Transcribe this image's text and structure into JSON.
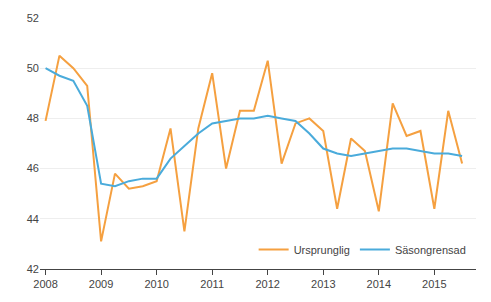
{
  "chart_data": {
    "type": "line",
    "x": [
      2008.0,
      2008.25,
      2008.5,
      2008.75,
      2009.0,
      2009.25,
      2009.5,
      2009.75,
      2010.0,
      2010.25,
      2010.5,
      2010.75,
      2011.0,
      2011.25,
      2011.5,
      2011.75,
      2012.0,
      2012.25,
      2012.5,
      2012.75,
      2013.0,
      2013.25,
      2013.5,
      2013.75,
      2014.0,
      2014.25,
      2014.5,
      2014.75,
      2015.0,
      2015.25,
      2015.5
    ],
    "series": [
      {
        "name": "Ursprunglig",
        "color": "#F5A040",
        "values": [
          47.9,
          50.5,
          50.0,
          49.3,
          43.1,
          45.8,
          45.2,
          45.3,
          45.5,
          47.6,
          43.5,
          47.6,
          49.8,
          46.0,
          48.3,
          48.3,
          50.3,
          46.2,
          47.8,
          48.0,
          47.5,
          44.4,
          47.2,
          46.7,
          44.3,
          48.6,
          47.3,
          47.5,
          44.4,
          48.3,
          46.2
        ]
      },
      {
        "name": "Säsongrensad",
        "color": "#4AABDB",
        "values": [
          50.0,
          49.7,
          49.5,
          48.5,
          45.4,
          45.3,
          45.5,
          45.6,
          45.6,
          46.4,
          46.9,
          47.4,
          47.8,
          47.9,
          48.0,
          48.0,
          48.1,
          48.0,
          47.9,
          47.4,
          46.8,
          46.6,
          46.5,
          46.6,
          46.7,
          46.8,
          46.8,
          46.7,
          46.6,
          46.6,
          46.5
        ]
      }
    ],
    "xlim": [
      2007.9,
      2015.75
    ],
    "xticks": [
      2008,
      2009,
      2010,
      2011,
      2012,
      2013,
      2014,
      2015
    ],
    "ylim": [
      42,
      52
    ],
    "yticks": [
      42,
      44,
      46,
      48,
      50,
      52
    ],
    "grid": true,
    "legend": "lower right"
  }
}
